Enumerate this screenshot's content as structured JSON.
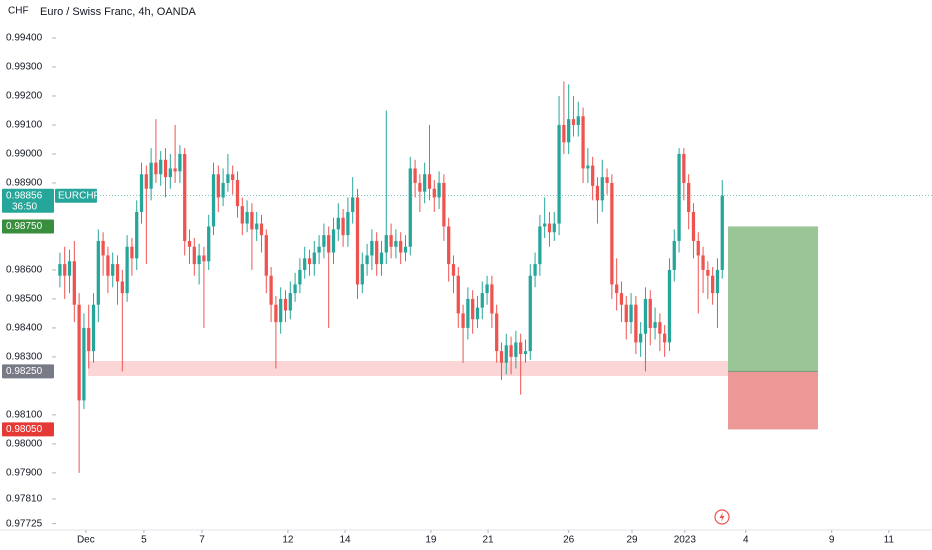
{
  "chart_data": {
    "type": "candlestick",
    "title": "Euro / Swiss Franc, 4h, OANDA",
    "currency": "CHF",
    "symbol": "EURCHF",
    "countdown": "36:50",
    "up_color": "#26a69a",
    "down_color": "#ef5350",
    "grid": false,
    "ylim": [
      0.97703,
      0.99531
    ],
    "xlim": [
      -0.4,
      181.7
    ],
    "yticks": [
      {
        "value": 0.994,
        "label": "0.99400"
      },
      {
        "value": 0.993,
        "label": "0.99300"
      },
      {
        "value": 0.992,
        "label": "0.99200"
      },
      {
        "value": 0.991,
        "label": "0.99100"
      },
      {
        "value": 0.99,
        "label": "0.99000"
      },
      {
        "value": 0.989,
        "label": "0.98900"
      },
      {
        "value": 0.986,
        "label": "0.98600"
      },
      {
        "value": 0.985,
        "label": "0.98500"
      },
      {
        "value": 0.984,
        "label": "0.98400"
      },
      {
        "value": 0.983,
        "label": "0.98300"
      },
      {
        "value": 0.981,
        "label": "0.98100"
      },
      {
        "value": 0.98,
        "label": "0.98000"
      },
      {
        "value": 0.979,
        "label": "0.97900"
      },
      {
        "value": 0.9781,
        "label": "0.97810"
      },
      {
        "value": 0.97725,
        "label": "0.97725"
      }
    ],
    "xticks": [
      {
        "value": 5.4,
        "label": "Dec"
      },
      {
        "value": 17.5,
        "label": "5"
      },
      {
        "value": 29.6,
        "label": "7"
      },
      {
        "value": 47.5,
        "label": "12"
      },
      {
        "value": 59.4,
        "label": "14"
      },
      {
        "value": 77.3,
        "label": "19"
      },
      {
        "value": 89.2,
        "label": "21"
      },
      {
        "value": 106,
        "label": "26"
      },
      {
        "value": 119.2,
        "label": "29"
      },
      {
        "value": 130.2,
        "label": "2023"
      },
      {
        "value": 142.9,
        "label": "4"
      },
      {
        "value": 160.8,
        "label": "9"
      },
      {
        "value": 172.7,
        "label": "11"
      }
    ],
    "last_price": {
      "value": 0.98856,
      "label": "0.98856"
    },
    "position": {
      "target": {
        "value": 0.9875,
        "label": "0.98750",
        "color": "#99c597",
        "tag_color": "#388e3c"
      },
      "entry": {
        "value": 0.9825,
        "label": "0.98250",
        "tag_color": "#787b86"
      },
      "stop": {
        "value": 0.9805,
        "label": "0.98050",
        "color": "#eb9896",
        "tag_color": "#e53935"
      }
    },
    "zone": {
      "range": [
        0.98234,
        0.98286
      ],
      "color": "#fcd6d6"
    },
    "ohlc": [
      [
        0.9858,
        0.9866,
        0.9854,
        0.9862
      ],
      [
        0.9862,
        0.9868,
        0.985,
        0.9858
      ],
      [
        0.9858,
        0.9867,
        0.9852,
        0.9863
      ],
      [
        0.9863,
        0.987,
        0.9842,
        0.9848
      ],
      [
        0.9848,
        0.9852,
        0.979,
        0.9815
      ],
      [
        0.9815,
        0.9845,
        0.9812,
        0.984
      ],
      [
        0.984,
        0.9848,
        0.9826,
        0.9832
      ],
      [
        0.9832,
        0.9852,
        0.9828,
        0.9848
      ],
      [
        0.9848,
        0.9874,
        0.9842,
        0.987
      ],
      [
        0.987,
        0.9873,
        0.9858,
        0.9865
      ],
      [
        0.9865,
        0.9868,
        0.9852,
        0.9858
      ],
      [
        0.9858,
        0.9866,
        0.9854,
        0.9862
      ],
      [
        0.9862,
        0.9865,
        0.9848,
        0.9856
      ],
      [
        0.9856,
        0.986,
        0.9825,
        0.9852
      ],
      [
        0.9852,
        0.9872,
        0.9849,
        0.9868
      ],
      [
        0.9868,
        0.9871,
        0.9858,
        0.9864
      ],
      [
        0.9864,
        0.9884,
        0.986,
        0.988
      ],
      [
        0.988,
        0.9897,
        0.9876,
        0.9893
      ],
      [
        0.9893,
        0.9896,
        0.9862,
        0.9888
      ],
      [
        0.9888,
        0.9902,
        0.9884,
        0.9897
      ],
      [
        0.9897,
        0.9912,
        0.989,
        0.9893
      ],
      [
        0.9893,
        0.9901,
        0.9889,
        0.9898
      ],
      [
        0.9898,
        0.9902,
        0.9885,
        0.9892
      ],
      [
        0.9892,
        0.99,
        0.9888,
        0.9895
      ],
      [
        0.9895,
        0.991,
        0.989,
        0.9894
      ],
      [
        0.9894,
        0.9903,
        0.989,
        0.99
      ],
      [
        0.99,
        0.9902,
        0.9865,
        0.987
      ],
      [
        0.987,
        0.9874,
        0.9862,
        0.9868
      ],
      [
        0.9868,
        0.9871,
        0.9858,
        0.9862
      ],
      [
        0.9862,
        0.9869,
        0.9855,
        0.9865
      ],
      [
        0.9865,
        0.9868,
        0.984,
        0.9863
      ],
      [
        0.9863,
        0.9879,
        0.986,
        0.9875
      ],
      [
        0.9875,
        0.9897,
        0.9872,
        0.9893
      ],
      [
        0.9893,
        0.9896,
        0.988,
        0.9885
      ],
      [
        0.9885,
        0.9895,
        0.9882,
        0.989
      ],
      [
        0.989,
        0.99,
        0.9887,
        0.9893
      ],
      [
        0.9893,
        0.9896,
        0.9886,
        0.9891
      ],
      [
        0.9891,
        0.9894,
        0.9878,
        0.9882
      ],
      [
        0.9882,
        0.9885,
        0.9872,
        0.9876
      ],
      [
        0.9876,
        0.9884,
        0.9873,
        0.988
      ],
      [
        0.988,
        0.9883,
        0.986,
        0.9874
      ],
      [
        0.9874,
        0.988,
        0.987,
        0.9876
      ],
      [
        0.9876,
        0.9879,
        0.9866,
        0.9872
      ],
      [
        0.9872,
        0.9874,
        0.9852,
        0.9858
      ],
      [
        0.9858,
        0.9861,
        0.9842,
        0.9848
      ],
      [
        0.9848,
        0.9851,
        0.9826,
        0.9842
      ],
      [
        0.9842,
        0.9854,
        0.9838,
        0.985
      ],
      [
        0.985,
        0.9853,
        0.9842,
        0.9846
      ],
      [
        0.9846,
        0.9856,
        0.9843,
        0.9852
      ],
      [
        0.9852,
        0.9859,
        0.9849,
        0.9855
      ],
      [
        0.9855,
        0.9864,
        0.9852,
        0.986
      ],
      [
        0.986,
        0.9868,
        0.9857,
        0.9864
      ],
      [
        0.9864,
        0.9867,
        0.9858,
        0.9862
      ],
      [
        0.9862,
        0.987,
        0.9858,
        0.9866
      ],
      [
        0.9866,
        0.9872,
        0.9862,
        0.9868
      ],
      [
        0.9868,
        0.9876,
        0.9864,
        0.9872
      ],
      [
        0.9872,
        0.9875,
        0.984,
        0.9866
      ],
      [
        0.9866,
        0.9878,
        0.9862,
        0.9874
      ],
      [
        0.9874,
        0.9883,
        0.987,
        0.9878
      ],
      [
        0.9878,
        0.9881,
        0.9868,
        0.9872
      ],
      [
        0.9872,
        0.9885,
        0.9868,
        0.988
      ],
      [
        0.988,
        0.9892,
        0.9876,
        0.9885
      ],
      [
        0.9885,
        0.9888,
        0.985,
        0.9855
      ],
      [
        0.9855,
        0.9866,
        0.9852,
        0.9862
      ],
      [
        0.9862,
        0.9869,
        0.9858,
        0.9865
      ],
      [
        0.9865,
        0.9874,
        0.986,
        0.987
      ],
      [
        0.987,
        0.9873,
        0.9858,
        0.9862
      ],
      [
        0.9862,
        0.987,
        0.9858,
        0.9866
      ],
      [
        0.9866,
        0.9915,
        0.9862,
        0.9872
      ],
      [
        0.9872,
        0.9876,
        0.9864,
        0.9868
      ],
      [
        0.9868,
        0.9874,
        0.9864,
        0.987
      ],
      [
        0.987,
        0.9873,
        0.9862,
        0.9866
      ],
      [
        0.9866,
        0.9872,
        0.9863,
        0.9868
      ],
      [
        0.9868,
        0.9899,
        0.9865,
        0.9895
      ],
      [
        0.9895,
        0.9898,
        0.9885,
        0.989
      ],
      [
        0.989,
        0.9893,
        0.988,
        0.9887
      ],
      [
        0.9887,
        0.9897,
        0.9883,
        0.9893
      ],
      [
        0.9893,
        0.991,
        0.9884,
        0.9888
      ],
      [
        0.9888,
        0.9891,
        0.988,
        0.9885
      ],
      [
        0.9885,
        0.9894,
        0.9881,
        0.989
      ],
      [
        0.989,
        0.9893,
        0.987,
        0.9875
      ],
      [
        0.9875,
        0.9878,
        0.9856,
        0.9862
      ],
      [
        0.9862,
        0.9865,
        0.9852,
        0.9858
      ],
      [
        0.9858,
        0.9861,
        0.984,
        0.9845
      ],
      [
        0.9845,
        0.9848,
        0.9828,
        0.984
      ],
      [
        0.984,
        0.9854,
        0.9836,
        0.985
      ],
      [
        0.985,
        0.9853,
        0.9838,
        0.9843
      ],
      [
        0.9843,
        0.9851,
        0.984,
        0.9847
      ],
      [
        0.9847,
        0.9856,
        0.9843,
        0.9852
      ],
      [
        0.9852,
        0.9858,
        0.9848,
        0.9855
      ],
      [
        0.9855,
        0.9858,
        0.984,
        0.9845
      ],
      [
        0.9845,
        0.9848,
        0.9828,
        0.9832
      ],
      [
        0.9832,
        0.9835,
        0.9822,
        0.9828
      ],
      [
        0.9828,
        0.9838,
        0.9824,
        0.9834
      ],
      [
        0.9834,
        0.9837,
        0.9824,
        0.983
      ],
      [
        0.983,
        0.9839,
        0.9826,
        0.9835
      ],
      [
        0.9835,
        0.9838,
        0.9817,
        0.9831
      ],
      [
        0.9831,
        0.9836,
        0.9828,
        0.9832
      ],
      [
        0.9832,
        0.9862,
        0.9829,
        0.9858
      ],
      [
        0.9858,
        0.9866,
        0.9854,
        0.9862
      ],
      [
        0.9862,
        0.9879,
        0.9858,
        0.9875
      ],
      [
        0.9875,
        0.9885,
        0.9871,
        0.9876
      ],
      [
        0.9876,
        0.988,
        0.9868,
        0.9873
      ],
      [
        0.9873,
        0.988,
        0.987,
        0.9876
      ],
      [
        0.9876,
        0.992,
        0.9872,
        0.991
      ],
      [
        0.991,
        0.9925,
        0.99,
        0.9904
      ],
      [
        0.9904,
        0.9924,
        0.99,
        0.9912
      ],
      [
        0.9912,
        0.992,
        0.9906,
        0.991
      ],
      [
        0.991,
        0.9918,
        0.9906,
        0.9913
      ],
      [
        0.9913,
        0.9916,
        0.989,
        0.9895
      ],
      [
        0.9895,
        0.9902,
        0.989,
        0.9896
      ],
      [
        0.9896,
        0.9899,
        0.9884,
        0.9889
      ],
      [
        0.9889,
        0.9892,
        0.9876,
        0.9884
      ],
      [
        0.9884,
        0.9898,
        0.988,
        0.9892
      ],
      [
        0.9892,
        0.9895,
        0.9886,
        0.989
      ],
      [
        0.989,
        0.9893,
        0.985,
        0.9855
      ],
      [
        0.9855,
        0.9864,
        0.9846,
        0.9852
      ],
      [
        0.9852,
        0.9856,
        0.9842,
        0.9848
      ],
      [
        0.9848,
        0.9851,
        0.9836,
        0.9842
      ],
      [
        0.9842,
        0.9852,
        0.9838,
        0.9848
      ],
      [
        0.9848,
        0.9851,
        0.9831,
        0.9835
      ],
      [
        0.9835,
        0.9842,
        0.983,
        0.9838
      ],
      [
        0.9838,
        0.9854,
        0.9825,
        0.985
      ],
      [
        0.985,
        0.9853,
        0.9834,
        0.984
      ],
      [
        0.984,
        0.9847,
        0.9836,
        0.9842
      ],
      [
        0.9842,
        0.9845,
        0.9832,
        0.9838
      ],
      [
        0.9838,
        0.9841,
        0.983,
        0.9835
      ],
      [
        0.9835,
        0.9864,
        0.9832,
        0.986
      ],
      [
        0.986,
        0.9874,
        0.9856,
        0.987
      ],
      [
        0.987,
        0.9902,
        0.9866,
        0.99
      ],
      [
        0.99,
        0.9902,
        0.9884,
        0.989
      ],
      [
        0.989,
        0.9893,
        0.9874,
        0.988
      ],
      [
        0.988,
        0.9883,
        0.9864,
        0.987
      ],
      [
        0.987,
        0.9873,
        0.9845,
        0.9865
      ],
      [
        0.9865,
        0.9868,
        0.9852,
        0.986
      ],
      [
        0.986,
        0.9863,
        0.985,
        0.9858
      ],
      [
        0.9858,
        0.9861,
        0.9848,
        0.9852
      ],
      [
        0.9852,
        0.9864,
        0.984,
        0.986
      ],
      [
        0.986,
        0.9891,
        0.9857,
        0.98856
      ]
    ]
  }
}
